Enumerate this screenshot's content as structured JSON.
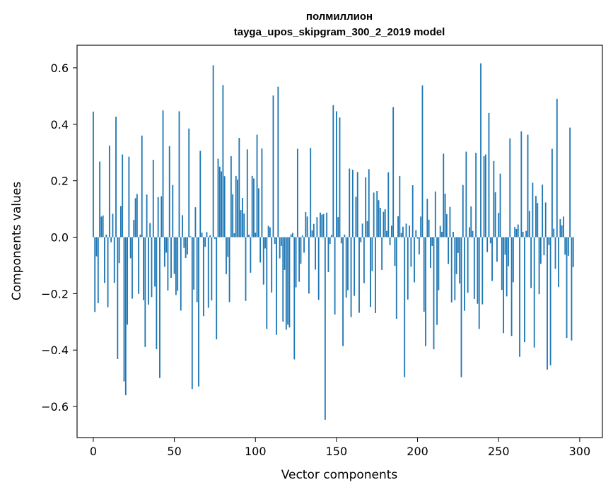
{
  "chart_data": {
    "type": "bar",
    "title": "полмиллион",
    "subtitle": "tayga_upos_skipgram_300_2_2019 model",
    "xlabel": "Vector components",
    "ylabel": "Components values",
    "xlim": [
      -10,
      314
    ],
    "ylim": [
      -0.71,
      0.68
    ],
    "xticks": [
      0,
      50,
      100,
      150,
      200,
      250,
      300
    ],
    "yticks": [
      -0.6,
      -0.4,
      -0.2,
      0.0,
      0.2,
      0.4,
      0.6
    ],
    "ytick_labels": [
      "−0.6",
      "−0.4",
      "−0.2",
      "0.0",
      "0.2",
      "0.4",
      "0.6"
    ],
    "bar_color": "#1f77b4",
    "grid": false,
    "legend": "none",
    "values": [
      0.445,
      -0.265,
      -0.068,
      -0.234,
      0.268,
      0.073,
      0.077,
      -0.162,
      0.009,
      -0.248,
      0.324,
      -0.018,
      0.083,
      -0.162,
      0.427,
      -0.432,
      -0.092,
      0.11,
      0.293,
      -0.511,
      -0.56,
      -0.31,
      0.285,
      -0.075,
      -0.218,
      0.061,
      0.138,
      0.153,
      -0.201,
      0.009,
      0.36,
      -0.223,
      -0.389,
      0.151,
      -0.239,
      0.05,
      -0.212,
      0.274,
      -0.175,
      -0.397,
      0.142,
      -0.499,
      0.145,
      0.449,
      -0.105,
      -0.055,
      -0.189,
      0.323,
      -0.144,
      0.185,
      -0.13,
      -0.205,
      -0.19,
      0.446,
      -0.26,
      0.078,
      -0.038,
      -0.074,
      -0.061,
      0.385,
      0.003,
      -0.538,
      -0.186,
      0.106,
      -0.23,
      -0.529,
      0.306,
      0.016,
      -0.28,
      -0.034,
      0.018,
      -0.25,
      0.007,
      -0.224,
      0.609,
      -0.006,
      -0.362,
      0.278,
      0.25,
      0.233,
      0.539,
      0.216,
      -0.131,
      -0.07,
      -0.23,
      0.287,
      0.152,
      0.014,
      0.217,
      0.204,
      0.352,
      0.096,
      0.139,
      0.084,
      -0.226,
      0.311,
      0.009,
      -0.126,
      0.217,
      0.208,
      0.016,
      0.363,
      0.173,
      -0.09,
      0.314,
      -0.168,
      -0.04,
      -0.325,
      0.04,
      0.035,
      -0.196,
      0.502,
      -0.024,
      -0.346,
      0.533,
      -0.075,
      -0.031,
      -0.299,
      -0.116,
      -0.328,
      -0.31,
      -0.32,
      0.01,
      0.015,
      -0.433,
      -0.178,
      0.313,
      -0.158,
      -0.094,
      0.006,
      -0.055,
      0.089,
      0.073,
      -0.2,
      0.316,
      0.024,
      0.047,
      -0.115,
      0.071,
      -0.222,
      0.087,
      0.08,
      0.082,
      -0.647,
      0.087,
      -0.124,
      -0.024,
      0.008,
      0.468,
      -0.274,
      0.446,
      0.071,
      0.424,
      -0.022,
      -0.386,
      0.009,
      -0.214,
      -0.188,
      0.243,
      -0.283,
      0.239,
      -0.208,
      0.143,
      0.231,
      -0.268,
      -0.018,
      0.048,
      -0.163,
      0.212,
      0.057,
      0.241,
      -0.247,
      -0.12,
      0.158,
      -0.269,
      0.164,
      0.131,
      0.104,
      -0.116,
      0.09,
      0.099,
      0.022,
      0.23,
      -0.028,
      0.041,
      0.461,
      -0.102,
      -0.289,
      0.074,
      0.217,
      0.015,
      0.037,
      -0.496,
      0.048,
      -0.221,
      0.041,
      -0.105,
      0.184,
      -0.16,
      0.025,
      -0.005,
      -0.061,
      0.073,
      0.538,
      -0.264,
      -0.386,
      0.136,
      0.062,
      -0.109,
      -0.031,
      -0.397,
      0.162,
      -0.311,
      -0.188,
      0.04,
      0.019,
      0.296,
      0.154,
      0.082,
      -0.095,
      0.107,
      -0.231,
      0.019,
      -0.223,
      -0.131,
      -0.056,
      -0.164,
      -0.496,
      0.185,
      -0.261,
      0.303,
      -0.197,
      0.035,
      0.109,
      0.022,
      -0.219,
      0.299,
      -0.236,
      -0.325,
      0.616,
      -0.238,
      0.287,
      0.293,
      -0.053,
      0.44,
      -0.022,
      -0.155,
      0.27,
      0.159,
      -0.087,
      0.086,
      0.225,
      -0.187,
      -0.34,
      -0.062,
      -0.21,
      -0.103,
      0.35,
      -0.35,
      -0.16,
      0.036,
      0.029,
      0.045,
      -0.424,
      0.375,
      0.019,
      -0.372,
      0.022,
      0.363,
      0.093,
      -0.18,
      0.193,
      -0.391,
      0.146,
      0.121,
      -0.202,
      -0.094,
      0.186,
      -0.064,
      0.123,
      -0.469,
      -0.028,
      -0.454,
      0.313,
      0.03,
      -0.112,
      0.49,
      -0.177,
      0.064,
      0.042,
      0.073,
      -0.062,
      -0.357,
      -0.066,
      0.388,
      -0.366,
      -0.106
    ]
  }
}
